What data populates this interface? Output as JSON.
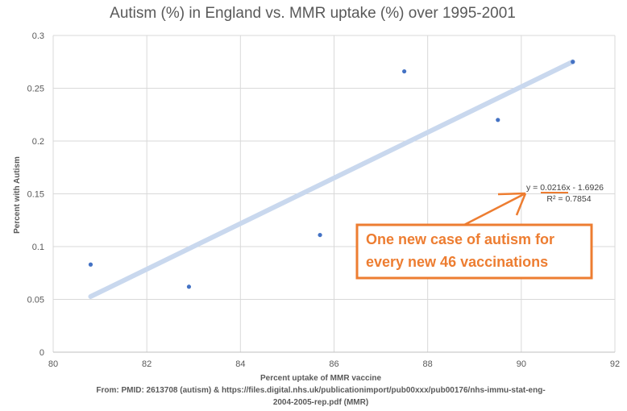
{
  "chart_data": {
    "type": "scatter",
    "title": "Autism (%) in England vs. MMR uptake (%) over 1995-2001",
    "xlabel": "Percent uptake of MMR vaccine",
    "ylabel": "Percent with Autism",
    "xlim": [
      80,
      92
    ],
    "ylim": [
      0,
      0.3
    ],
    "x_ticks": [
      "80",
      "82",
      "84",
      "86",
      "88",
      "90",
      "92"
    ],
    "y_ticks": [
      "0",
      "0.05",
      "0.1",
      "0.15",
      "0.2",
      "0.25",
      "0.3"
    ],
    "grid": true,
    "points": [
      {
        "x": 80.8,
        "y": 0.083
      },
      {
        "x": 82.9,
        "y": 0.062
      },
      {
        "x": 85.7,
        "y": 0.111
      },
      {
        "x": 87.5,
        "y": 0.266
      },
      {
        "x": 89.5,
        "y": 0.22
      },
      {
        "x": 91.1,
        "y": 0.275
      }
    ],
    "trendline": {
      "slope": 0.0216,
      "intercept": -1.6926,
      "x_range": [
        80.8,
        91.1
      ],
      "equation": "y = 0.0216x - 1.6926",
      "r2": "R² = 0.7854"
    },
    "annotation": {
      "lines": [
        "One new case of autism for",
        "every new 46 vaccinations"
      ]
    },
    "source_lines": [
      "From: PMID: 2613708 (autism) & https://files.digital.nhs.uk/publicationimport/pub00xxx/pub00176/nhs-immu-stat-eng-",
      "2004-2005-rep.pdf (MMR)"
    ]
  },
  "colors": {
    "point": "#4472c4",
    "trendline": "#c9d8ee",
    "gridline": "#d9d9d9",
    "accent": "#ed7d31",
    "text": "#595959"
  }
}
